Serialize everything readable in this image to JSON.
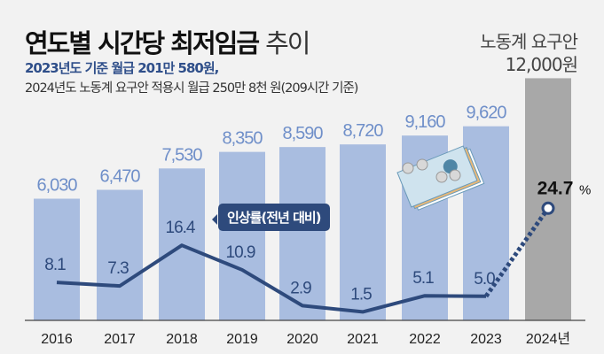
{
  "header": {
    "title_bold": "연도별 시간당 최저임금",
    "title_light": "추이",
    "subtitle1": "2023년도 기준 월급 201만 580원,",
    "subtitle2": "2024년도 노동계 요구안 적용시 월급 250만 8천 원(209시간 기준)",
    "request_label": "노동계 요구안",
    "request_value": "12,000원"
  },
  "chart_data": {
    "type": "bar",
    "categories": [
      "2016",
      "2017",
      "2018",
      "2019",
      "2020",
      "2021",
      "2022",
      "2023",
      "2024년"
    ],
    "series": [
      {
        "name": "시간당 최저임금(원)",
        "type": "bar",
        "values": [
          6030,
          6470,
          7530,
          8350,
          8590,
          8720,
          9160,
          9620,
          12000
        ],
        "labels": [
          "6,030",
          "6,470",
          "7,530",
          "8,350",
          "8,590",
          "8,720",
          "9,160",
          "9,620",
          ""
        ]
      },
      {
        "name": "인상률(전년 대비)",
        "type": "line",
        "values": [
          8.1,
          7.3,
          16.4,
          10.9,
          2.9,
          1.5,
          5.1,
          5.0,
          24.7
        ],
        "labels": [
          "8.1",
          "7.3",
          "16.4",
          "10.9",
          "2.9",
          "1.5",
          "5.1",
          "5.0",
          "24.7"
        ]
      }
    ],
    "line_label": "인상률(전년 대비)",
    "percent_sign": "%",
    "colors": {
      "bar": "#a9bde0",
      "bar_highlight": "#a8a8a8",
      "line": "#2e4a7c",
      "bar_label": "#6f8fc9",
      "background": "#f2f2f2"
    }
  }
}
